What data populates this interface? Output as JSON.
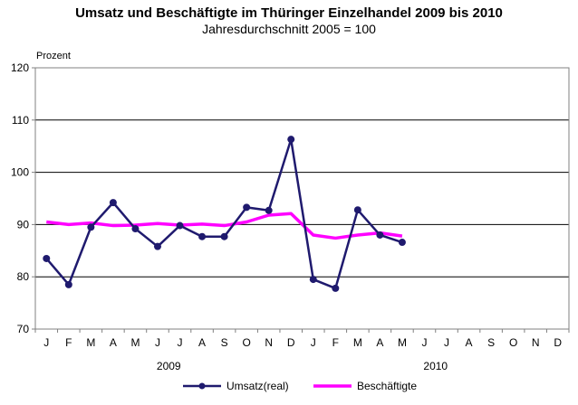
{
  "chart_data": {
    "type": "line",
    "title": "Umsatz und Beschäftigte im Thüringer Einzelhandel 2009 bis 2010",
    "subtitle": "Jahresdurchschnitt 2005 = 100",
    "ylabel": "Prozent",
    "ylim": [
      70,
      120
    ],
    "yticks": [
      70,
      80,
      90,
      100,
      110,
      120
    ],
    "grid": true,
    "categories": [
      "J",
      "F",
      "M",
      "A",
      "M",
      "J",
      "J",
      "A",
      "S",
      "O",
      "N",
      "D",
      "J",
      "F",
      "M",
      "A",
      "M",
      "J",
      "J",
      "A",
      "S",
      "O",
      "N",
      "D"
    ],
    "year_labels": [
      "2009",
      "2010"
    ],
    "legend_position": "bottom",
    "series": [
      {
        "name": "Umsatz(real)",
        "color": "#1f1a6e",
        "marker": "circle",
        "values": [
          83.5,
          78.5,
          89.5,
          94.2,
          89.2,
          85.8,
          89.8,
          87.7,
          87.7,
          93.3,
          92.7,
          106.3,
          79.5,
          77.8,
          92.8,
          88.0,
          86.6,
          null,
          null,
          null,
          null,
          null,
          null,
          null
        ]
      },
      {
        "name": "Beschäftigte",
        "color": "#ff00ff",
        "marker": "none",
        "values": [
          90.5,
          90.0,
          90.3,
          89.8,
          89.9,
          90.2,
          89.9,
          90.1,
          89.8,
          90.5,
          91.8,
          92.1,
          88.0,
          87.4,
          88.0,
          88.4,
          87.8,
          null,
          null,
          null,
          null,
          null,
          null,
          null
        ]
      }
    ]
  }
}
